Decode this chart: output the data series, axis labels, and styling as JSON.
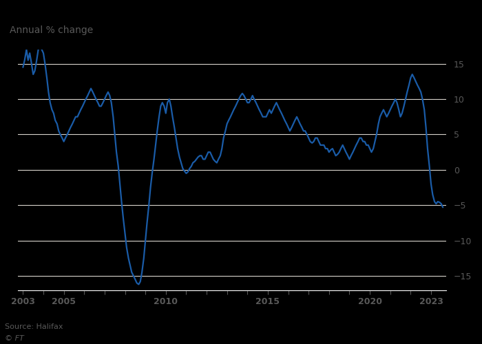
{
  "title": "Annual % change",
  "source": "Source: Halifax",
  "copyright": "© FT",
  "line_color": "#1a5ca8",
  "background_color": "#000000",
  "plot_bg_color": "#000000",
  "grid_color": "#d8d4cc",
  "text_color": "#595959",
  "ylim": [
    -17,
    17
  ],
  "yticks": [
    -15,
    -10,
    -5,
    0,
    5,
    10,
    15
  ],
  "xlim_start": 2002.75,
  "xlim_end": 2023.75,
  "xtick_years": [
    2003,
    2005,
    2010,
    2015,
    2020,
    2023
  ],
  "data": [
    [
      2003.0,
      14.5
    ],
    [
      2003.08,
      15.5
    ],
    [
      2003.17,
      17.0
    ],
    [
      2003.25,
      15.5
    ],
    [
      2003.33,
      16.5
    ],
    [
      2003.42,
      15.0
    ],
    [
      2003.5,
      13.5
    ],
    [
      2003.58,
      14.0
    ],
    [
      2003.67,
      15.5
    ],
    [
      2003.75,
      17.0
    ],
    [
      2003.83,
      17.5
    ],
    [
      2003.92,
      17.0
    ],
    [
      2004.0,
      16.5
    ],
    [
      2004.08,
      15.0
    ],
    [
      2004.17,
      13.0
    ],
    [
      2004.25,
      11.0
    ],
    [
      2004.33,
      9.5
    ],
    [
      2004.42,
      8.5
    ],
    [
      2004.5,
      8.0
    ],
    [
      2004.58,
      7.0
    ],
    [
      2004.67,
      6.5
    ],
    [
      2004.75,
      5.5
    ],
    [
      2004.83,
      5.0
    ],
    [
      2004.92,
      4.5
    ],
    [
      2005.0,
      4.0
    ],
    [
      2005.08,
      4.5
    ],
    [
      2005.17,
      5.0
    ],
    [
      2005.25,
      5.5
    ],
    [
      2005.33,
      6.0
    ],
    [
      2005.42,
      6.5
    ],
    [
      2005.5,
      7.0
    ],
    [
      2005.58,
      7.5
    ],
    [
      2005.67,
      7.5
    ],
    [
      2005.75,
      8.0
    ],
    [
      2005.83,
      8.5
    ],
    [
      2005.92,
      9.0
    ],
    [
      2006.0,
      9.5
    ],
    [
      2006.08,
      10.0
    ],
    [
      2006.17,
      10.5
    ],
    [
      2006.25,
      11.0
    ],
    [
      2006.33,
      11.5
    ],
    [
      2006.42,
      11.0
    ],
    [
      2006.5,
      10.5
    ],
    [
      2006.58,
      10.0
    ],
    [
      2006.67,
      9.5
    ],
    [
      2006.75,
      9.0
    ],
    [
      2006.83,
      9.0
    ],
    [
      2006.92,
      9.5
    ],
    [
      2007.0,
      10.0
    ],
    [
      2007.08,
      10.5
    ],
    [
      2007.17,
      11.0
    ],
    [
      2007.25,
      10.5
    ],
    [
      2007.33,
      9.5
    ],
    [
      2007.42,
      7.5
    ],
    [
      2007.5,
      5.0
    ],
    [
      2007.58,
      2.5
    ],
    [
      2007.67,
      0.5
    ],
    [
      2007.75,
      -2.0
    ],
    [
      2007.83,
      -4.5
    ],
    [
      2007.92,
      -7.0
    ],
    [
      2008.0,
      -9.0
    ],
    [
      2008.08,
      -11.0
    ],
    [
      2008.17,
      -12.5
    ],
    [
      2008.25,
      -13.5
    ],
    [
      2008.33,
      -14.5
    ],
    [
      2008.42,
      -15.0
    ],
    [
      2008.5,
      -15.5
    ],
    [
      2008.58,
      -16.0
    ],
    [
      2008.67,
      -16.2
    ],
    [
      2008.75,
      -15.8
    ],
    [
      2008.83,
      -14.5
    ],
    [
      2008.92,
      -12.5
    ],
    [
      2009.0,
      -10.0
    ],
    [
      2009.08,
      -7.5
    ],
    [
      2009.17,
      -5.0
    ],
    [
      2009.25,
      -2.5
    ],
    [
      2009.33,
      -0.5
    ],
    [
      2009.42,
      1.5
    ],
    [
      2009.5,
      3.5
    ],
    [
      2009.58,
      5.5
    ],
    [
      2009.67,
      7.5
    ],
    [
      2009.75,
      9.0
    ],
    [
      2009.83,
      9.5
    ],
    [
      2009.92,
      9.0
    ],
    [
      2010.0,
      8.0
    ],
    [
      2010.08,
      9.5
    ],
    [
      2010.17,
      10.0
    ],
    [
      2010.25,
      9.0
    ],
    [
      2010.33,
      7.5
    ],
    [
      2010.42,
      6.0
    ],
    [
      2010.5,
      4.5
    ],
    [
      2010.58,
      3.0
    ],
    [
      2010.67,
      1.8
    ],
    [
      2010.75,
      1.0
    ],
    [
      2010.83,
      0.2
    ],
    [
      2010.92,
      -0.2
    ],
    [
      2011.0,
      -0.5
    ],
    [
      2011.08,
      -0.3
    ],
    [
      2011.17,
      0.2
    ],
    [
      2011.25,
      0.5
    ],
    [
      2011.33,
      1.0
    ],
    [
      2011.42,
      1.2
    ],
    [
      2011.5,
      1.5
    ],
    [
      2011.58,
      1.8
    ],
    [
      2011.67,
      2.0
    ],
    [
      2011.75,
      2.0
    ],
    [
      2011.83,
      1.5
    ],
    [
      2011.92,
      1.5
    ],
    [
      2012.0,
      2.0
    ],
    [
      2012.08,
      2.5
    ],
    [
      2012.17,
      2.5
    ],
    [
      2012.25,
      2.0
    ],
    [
      2012.33,
      1.5
    ],
    [
      2012.42,
      1.2
    ],
    [
      2012.5,
      1.0
    ],
    [
      2012.58,
      1.5
    ],
    [
      2012.67,
      2.0
    ],
    [
      2012.75,
      3.0
    ],
    [
      2012.83,
      4.5
    ],
    [
      2012.92,
      5.5
    ],
    [
      2013.0,
      6.5
    ],
    [
      2013.08,
      7.0
    ],
    [
      2013.17,
      7.5
    ],
    [
      2013.25,
      8.0
    ],
    [
      2013.33,
      8.5
    ],
    [
      2013.42,
      9.0
    ],
    [
      2013.5,
      9.5
    ],
    [
      2013.58,
      10.0
    ],
    [
      2013.67,
      10.5
    ],
    [
      2013.75,
      10.8
    ],
    [
      2013.83,
      10.5
    ],
    [
      2013.92,
      10.0
    ],
    [
      2014.0,
      9.5
    ],
    [
      2014.08,
      9.5
    ],
    [
      2014.17,
      10.0
    ],
    [
      2014.25,
      10.5
    ],
    [
      2014.33,
      10.0
    ],
    [
      2014.42,
      9.5
    ],
    [
      2014.5,
      9.0
    ],
    [
      2014.58,
      8.5
    ],
    [
      2014.67,
      8.0
    ],
    [
      2014.75,
      7.5
    ],
    [
      2014.83,
      7.5
    ],
    [
      2014.92,
      7.5
    ],
    [
      2015.0,
      8.0
    ],
    [
      2015.08,
      8.5
    ],
    [
      2015.17,
      8.0
    ],
    [
      2015.25,
      8.5
    ],
    [
      2015.33,
      9.0
    ],
    [
      2015.42,
      9.5
    ],
    [
      2015.5,
      9.0
    ],
    [
      2015.58,
      8.5
    ],
    [
      2015.67,
      8.0
    ],
    [
      2015.75,
      7.5
    ],
    [
      2015.83,
      7.0
    ],
    [
      2015.92,
      6.5
    ],
    [
      2016.0,
      6.0
    ],
    [
      2016.08,
      5.5
    ],
    [
      2016.17,
      6.0
    ],
    [
      2016.25,
      6.5
    ],
    [
      2016.33,
      7.0
    ],
    [
      2016.42,
      7.5
    ],
    [
      2016.5,
      7.0
    ],
    [
      2016.58,
      6.5
    ],
    [
      2016.67,
      6.0
    ],
    [
      2016.75,
      5.5
    ],
    [
      2016.83,
      5.5
    ],
    [
      2016.92,
      5.0
    ],
    [
      2017.0,
      4.5
    ],
    [
      2017.08,
      4.0
    ],
    [
      2017.17,
      3.8
    ],
    [
      2017.25,
      4.0
    ],
    [
      2017.33,
      4.5
    ],
    [
      2017.42,
      4.5
    ],
    [
      2017.5,
      4.0
    ],
    [
      2017.58,
      3.5
    ],
    [
      2017.67,
      3.5
    ],
    [
      2017.75,
      3.5
    ],
    [
      2017.83,
      3.0
    ],
    [
      2017.92,
      3.0
    ],
    [
      2018.0,
      2.5
    ],
    [
      2018.08,
      2.8
    ],
    [
      2018.17,
      3.0
    ],
    [
      2018.25,
      2.5
    ],
    [
      2018.33,
      2.0
    ],
    [
      2018.42,
      2.2
    ],
    [
      2018.5,
      2.5
    ],
    [
      2018.58,
      3.0
    ],
    [
      2018.67,
      3.5
    ],
    [
      2018.75,
      3.0
    ],
    [
      2018.83,
      2.5
    ],
    [
      2018.92,
      2.0
    ],
    [
      2019.0,
      1.5
    ],
    [
      2019.08,
      2.0
    ],
    [
      2019.17,
      2.5
    ],
    [
      2019.25,
      3.0
    ],
    [
      2019.33,
      3.5
    ],
    [
      2019.42,
      4.0
    ],
    [
      2019.5,
      4.5
    ],
    [
      2019.58,
      4.5
    ],
    [
      2019.67,
      4.0
    ],
    [
      2019.75,
      4.0
    ],
    [
      2019.83,
      3.5
    ],
    [
      2019.92,
      3.5
    ],
    [
      2020.0,
      3.0
    ],
    [
      2020.08,
      2.5
    ],
    [
      2020.17,
      3.0
    ],
    [
      2020.25,
      4.0
    ],
    [
      2020.33,
      5.0
    ],
    [
      2020.42,
      6.5
    ],
    [
      2020.5,
      7.5
    ],
    [
      2020.58,
      8.0
    ],
    [
      2020.67,
      8.5
    ],
    [
      2020.75,
      8.0
    ],
    [
      2020.83,
      7.5
    ],
    [
      2020.92,
      8.0
    ],
    [
      2021.0,
      8.5
    ],
    [
      2021.08,
      9.0
    ],
    [
      2021.17,
      9.5
    ],
    [
      2021.25,
      10.0
    ],
    [
      2021.33,
      9.5
    ],
    [
      2021.42,
      8.5
    ],
    [
      2021.5,
      7.5
    ],
    [
      2021.58,
      8.0
    ],
    [
      2021.67,
      9.0
    ],
    [
      2021.75,
      10.0
    ],
    [
      2021.83,
      11.0
    ],
    [
      2021.92,
      12.0
    ],
    [
      2022.0,
      13.0
    ],
    [
      2022.08,
      13.5
    ],
    [
      2022.17,
      13.0
    ],
    [
      2022.25,
      12.5
    ],
    [
      2022.33,
      12.0
    ],
    [
      2022.42,
      11.5
    ],
    [
      2022.5,
      11.0
    ],
    [
      2022.58,
      10.0
    ],
    [
      2022.67,
      8.5
    ],
    [
      2022.75,
      6.0
    ],
    [
      2022.83,
      3.0
    ],
    [
      2022.92,
      0.5
    ],
    [
      2023.0,
      -2.0
    ],
    [
      2023.08,
      -3.5
    ],
    [
      2023.17,
      -4.5
    ],
    [
      2023.25,
      -4.8
    ],
    [
      2023.33,
      -4.5
    ],
    [
      2023.42,
      -4.6
    ],
    [
      2023.5,
      -4.8
    ],
    [
      2023.58,
      -5.3
    ]
  ]
}
